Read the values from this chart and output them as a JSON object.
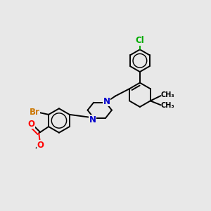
{
  "bg_color": "#e8e8e8",
  "bond_color": "#000000",
  "N_color": "#0000cc",
  "O_color": "#ff0000",
  "Br_color": "#cc7700",
  "Cl_color": "#00aa00",
  "lw": 1.4,
  "xlim": [
    -0.5,
    8.5
  ],
  "ylim": [
    0.0,
    8.5
  ]
}
